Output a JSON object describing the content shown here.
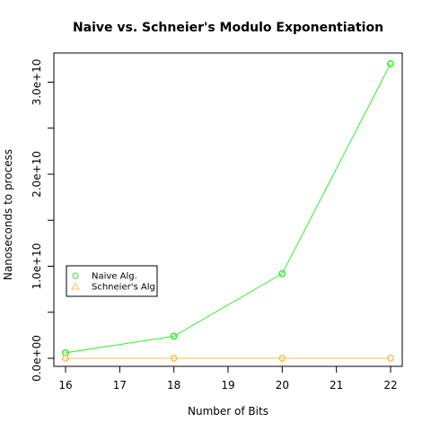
{
  "chart_data": {
    "type": "line",
    "title": "Naive vs. Schneier's Modulo Exponentiation",
    "xlabel": "Number of Bits",
    "ylabel": "Nanoseconds to process",
    "xlim": [
      16,
      22
    ],
    "ylim": [
      0,
      32000000000
    ],
    "x_ticks": [
      16,
      17,
      18,
      19,
      20,
      21,
      22
    ],
    "x_tick_labels": [
      "16",
      "17",
      "18",
      "19",
      "20",
      "21",
      "22"
    ],
    "y_ticks": [
      0,
      10000000000,
      20000000000,
      30000000000
    ],
    "y_tick_labels": [
      "0.0e+00",
      "1.0e+10",
      "2.0e+10",
      "3.0e+10"
    ],
    "legend_position": "left-middle",
    "grid": false,
    "series": [
      {
        "name": "Naive Alg.",
        "color": "#33ee33",
        "marker": "circle",
        "legend_marker": "circle",
        "x": [
          16,
          18,
          20,
          22
        ],
        "values": [
          600000000,
          2400000000,
          9200000000,
          32000000000
        ]
      },
      {
        "name": "Schneier's Alg",
        "color": "#f5c060",
        "marker": "circle",
        "legend_marker": "triangle",
        "x": [
          16,
          18,
          20,
          22
        ],
        "values": [
          0,
          0,
          0,
          0
        ]
      }
    ]
  }
}
